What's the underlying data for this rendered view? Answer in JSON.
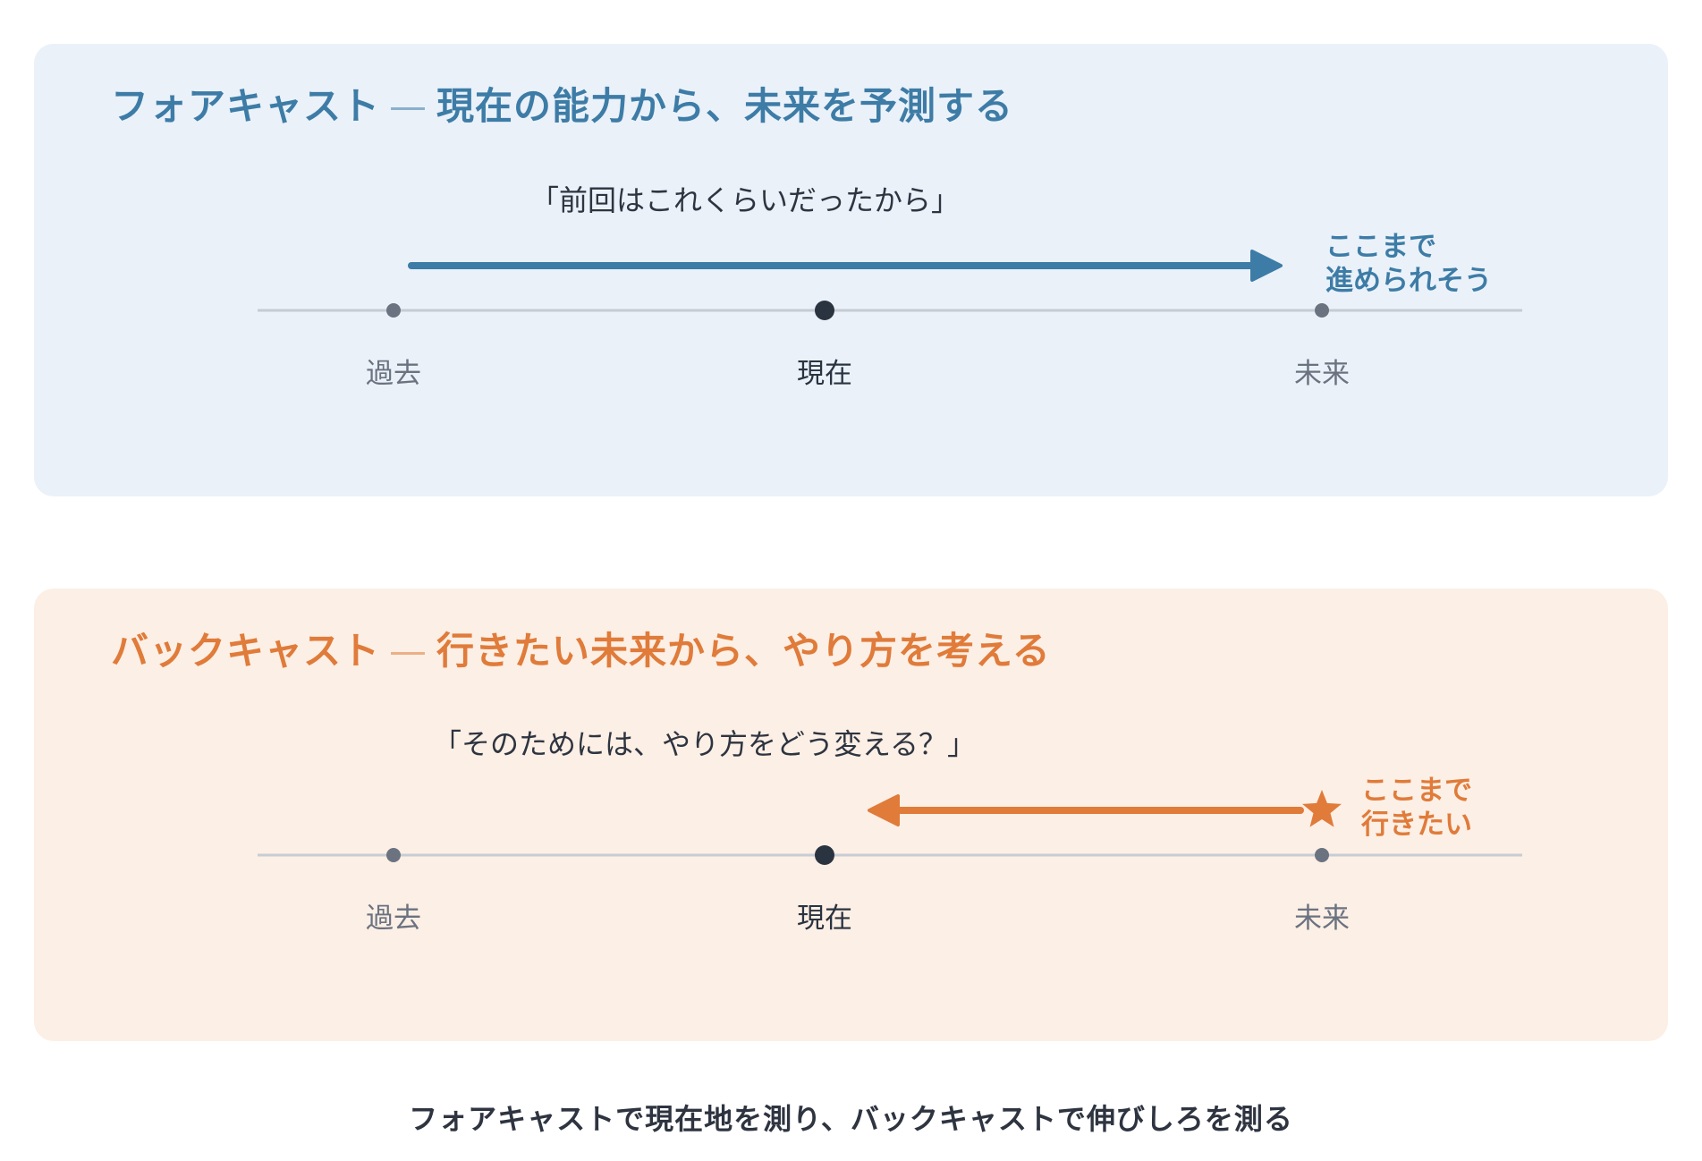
{
  "colors": {
    "forecast_accent": "#3d7ca6",
    "backcast_accent": "#e07b3a",
    "forecast_bg": "#eaf1f9",
    "backcast_bg": "#fcefe5",
    "timeline": "#c7ccd4",
    "now_dot": "#2a3340"
  },
  "forecast": {
    "title_main": "フォアキャスト",
    "title_dash": "—",
    "title_sub": "現在の能力から、未来を予測する",
    "quote": "「前回はこれくらいだったから」",
    "note_line1": "ここまで",
    "note_line2": "進められそう",
    "arrow_direction": "right",
    "labels": {
      "past": "過去",
      "now": "現在",
      "future": "未来"
    }
  },
  "backcast": {
    "title_main": "バックキャスト",
    "title_dash": "—",
    "title_sub": "行きたい未来から、やり方を考える",
    "quote": "「そのためには、やり方をどう変える？」",
    "note_line1": "ここまで",
    "note_line2": "行きたい",
    "arrow_direction": "left",
    "marker_icon": "star-icon",
    "labels": {
      "past": "過去",
      "now": "現在",
      "future": "未来"
    }
  },
  "summary": "フォアキャストで現在地を測り、バックキャストで伸びしろを測る"
}
